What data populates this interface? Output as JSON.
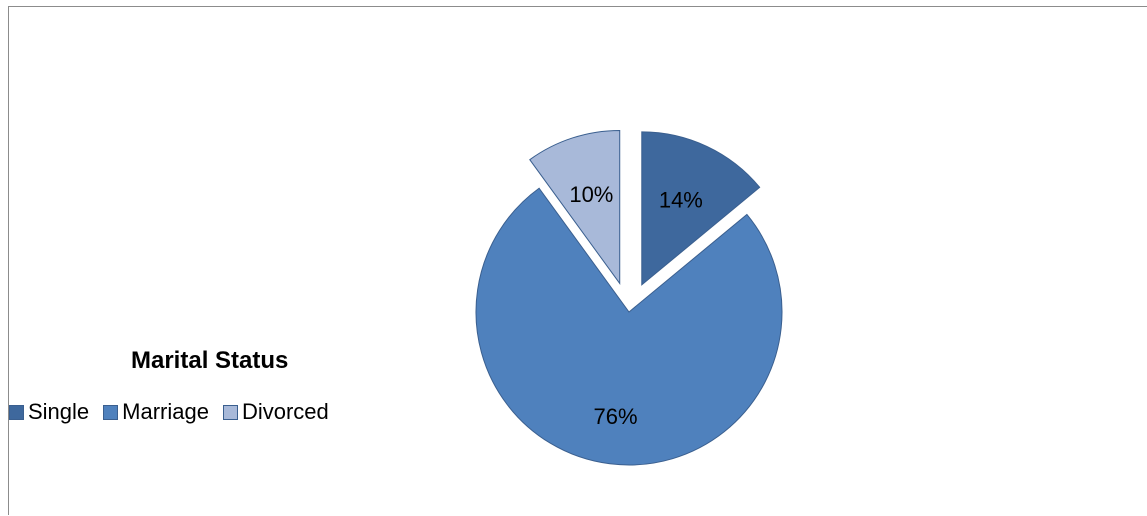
{
  "chart_data": {
    "type": "pie",
    "title": "Marital Status",
    "categories": [
      "Single",
      "Marriage",
      "Divorced"
    ],
    "values": [
      14,
      76,
      10
    ],
    "labels": [
      "14%",
      "76%",
      "10%"
    ],
    "colors": [
      "#3e689d",
      "#4f81bd",
      "#a8b9d9"
    ],
    "exploded": true,
    "legend_placement": "left"
  }
}
